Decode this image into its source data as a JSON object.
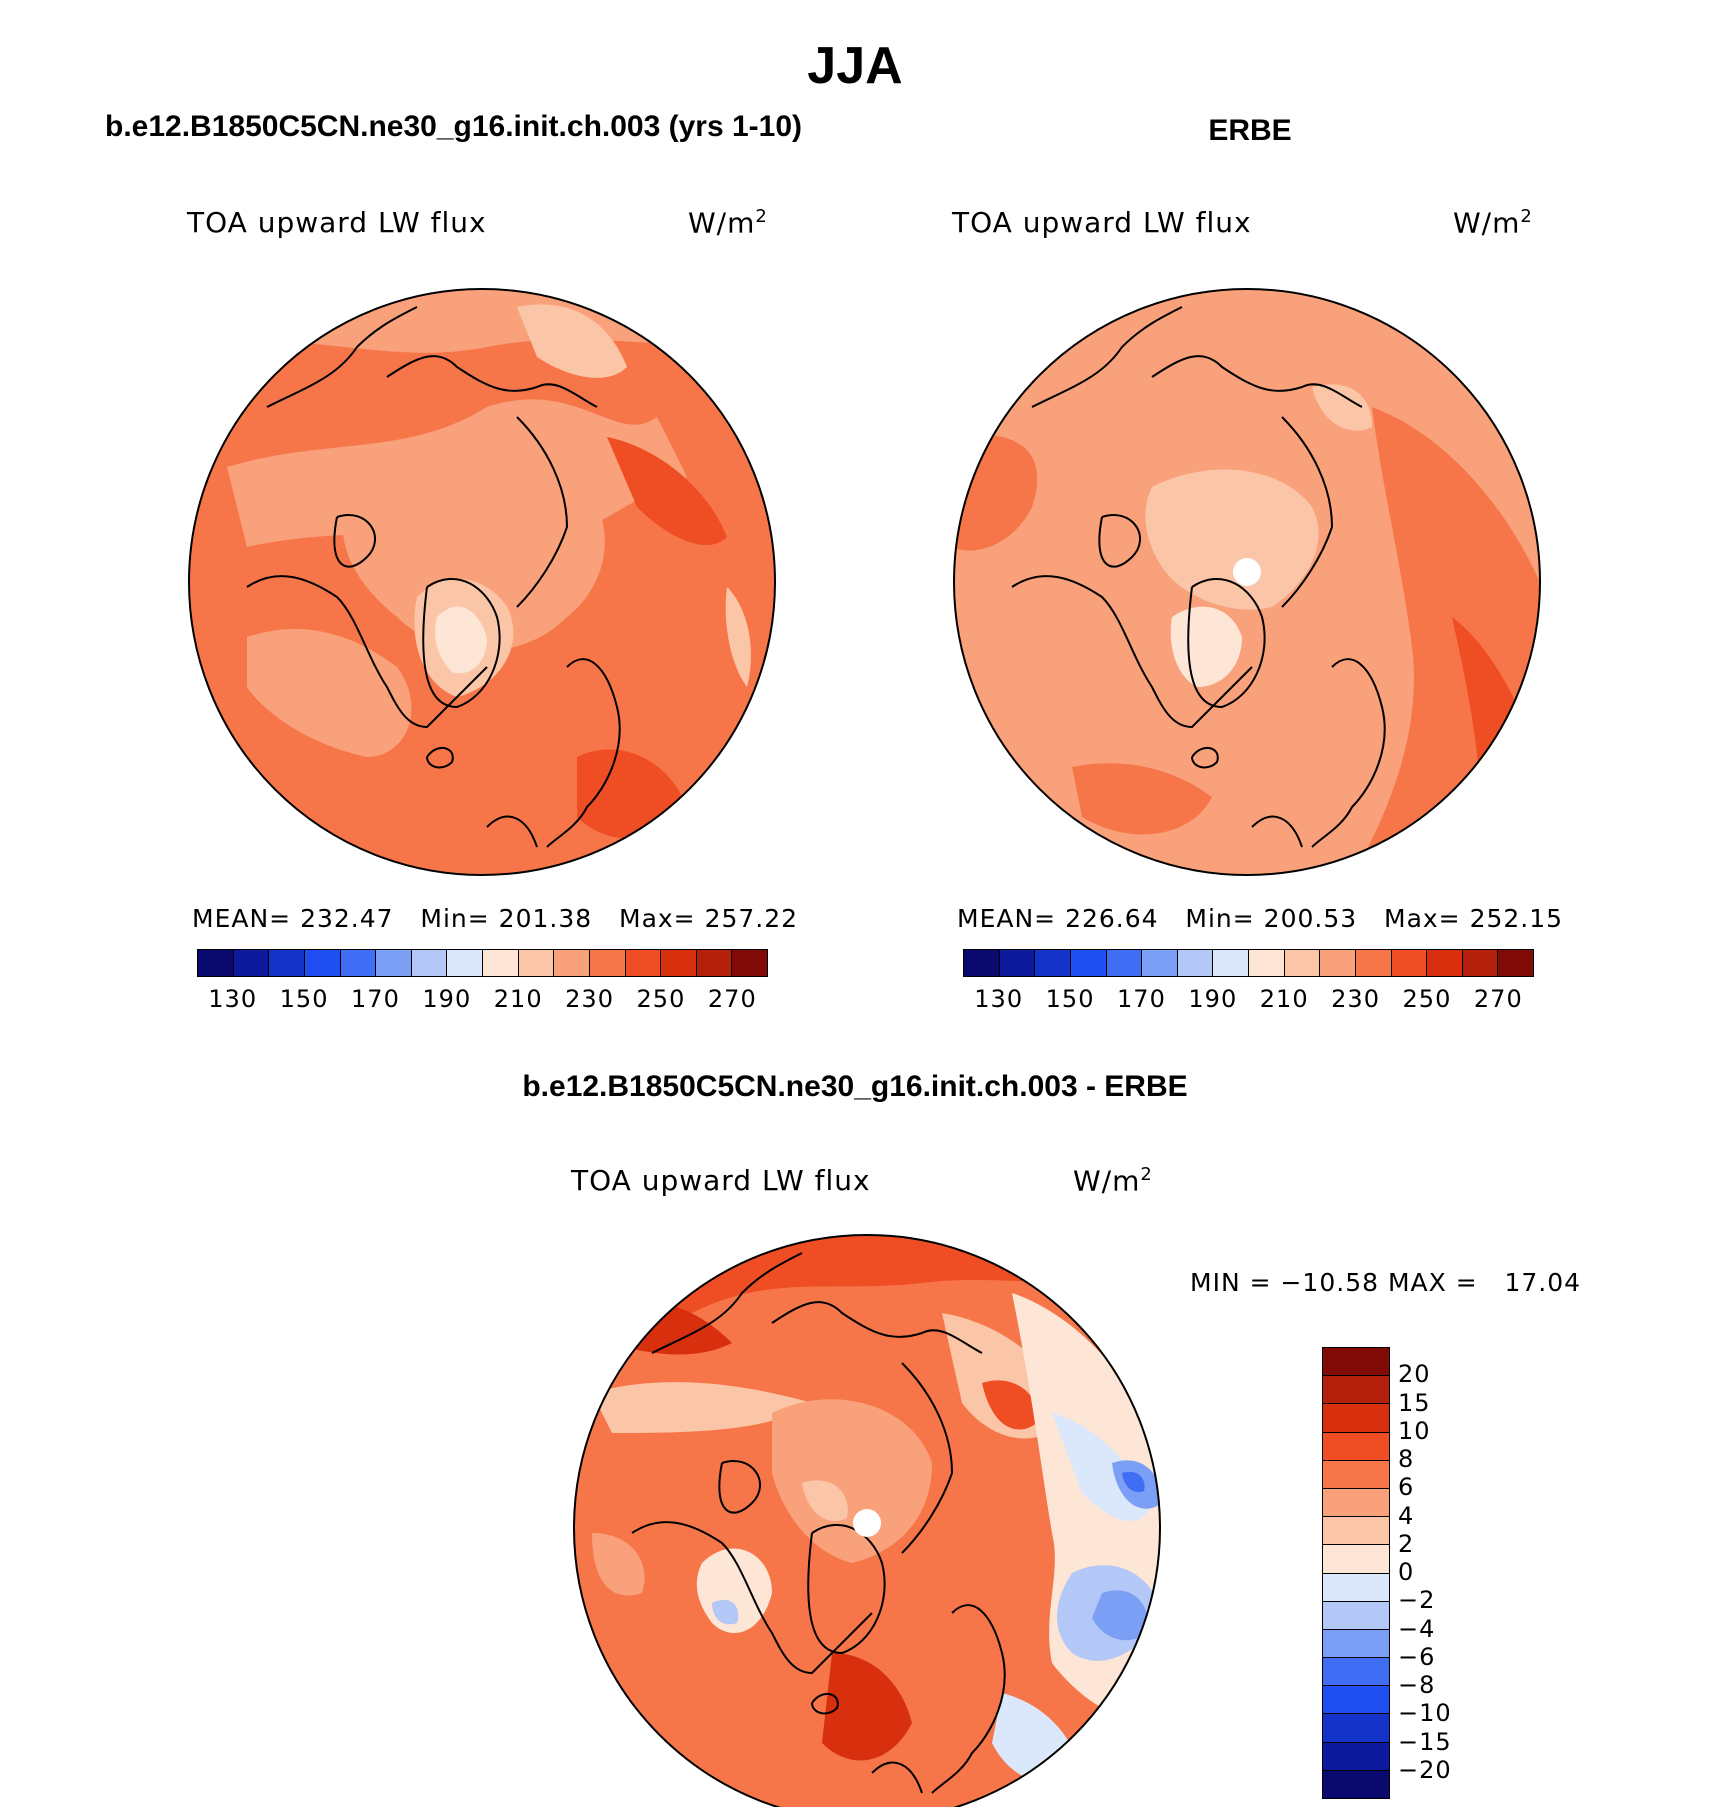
{
  "title": "JJA",
  "panels": {
    "model": {
      "heading": "b.e12.B1850C5CN.ne30_g16.init.ch.003 (yrs 1-10)",
      "variable": "TOA upward LW flux",
      "units": "W/m",
      "units_sup": "2",
      "stats": {
        "mean_label": "MEAN=",
        "mean": "232.47",
        "min_label": "Min=",
        "min": "201.38",
        "max_label": "Max=",
        "max": "257.22"
      }
    },
    "obs": {
      "heading": "ERBE",
      "variable": "TOA upward LW flux",
      "units": "W/m",
      "units_sup": "2",
      "stats": {
        "mean_label": "MEAN=",
        "mean": "226.64",
        "min_label": "Min=",
        "min": "200.53",
        "max_label": "Max=",
        "max": "252.15"
      }
    },
    "diff": {
      "heading": "b.e12.B1850C5CN.ne30_g16.init.ch.003 - ERBE",
      "variable": "TOA upward LW flux",
      "units": "W/m",
      "units_sup": "2",
      "stats_text": "MIN = −10.58 MAX =   17.04"
    }
  },
  "colorbar_main": {
    "colors": [
      "#0a0a6e",
      "#0e1a9e",
      "#1433c8",
      "#1f4ff0",
      "#3f6ef4",
      "#7c9ff6",
      "#b3c8f7",
      "#dbe7fb",
      "#fde6d6",
      "#fbc6a8",
      "#f9a17b",
      "#f6764a",
      "#ef4d23",
      "#d8300f",
      "#b4200c",
      "#800a05"
    ],
    "tick_labels": [
      "130",
      "150",
      "170",
      "190",
      "210",
      "230",
      "250",
      "270"
    ]
  },
  "colorbar_diff": {
    "colors": [
      "#800a05",
      "#b4200c",
      "#d8300f",
      "#ef4d23",
      "#f6764a",
      "#f9a17b",
      "#fbc6a8",
      "#fde6d6",
      "#dbe7fb",
      "#b3c8f7",
      "#7c9ff6",
      "#3f6ef4",
      "#1f4ff0",
      "#1433c8",
      "#0e1a9e",
      "#0a0a6e"
    ],
    "tick_labels": [
      "20",
      "15",
      "10",
      "8",
      "6",
      "4",
      "2",
      "0",
      "−2",
      "−4",
      "−6",
      "−8",
      "−10",
      "−15",
      "−20"
    ]
  }
}
